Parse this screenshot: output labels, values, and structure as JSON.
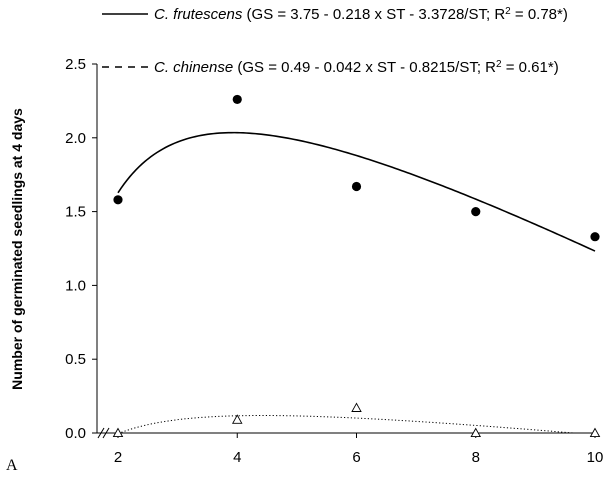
{
  "panel_label": "A",
  "chart_data": {
    "type": "scatter",
    "ylabel": "Number of germinated seedlings at 4 days",
    "xlabel": "",
    "x_ticks": [
      2,
      4,
      6,
      8,
      10
    ],
    "y_ticks": [
      "0.0",
      "0.5",
      "1.0",
      "1.5",
      "2.0",
      "2.5"
    ],
    "xlim": [
      2,
      10
    ],
    "ylim": [
      0,
      2.5
    ],
    "axis_break": true,
    "series": [
      {
        "name": "C. frutescens",
        "equation": "(GS = 3.75 - 0.218 x ST - 3.3728/ST; R",
        "r2": "2",
        "r2_value": " = 0.78*)",
        "marker": "filled-circle",
        "line": "solid",
        "x": [
          2,
          4,
          6,
          8,
          10
        ],
        "y": [
          1.58,
          2.26,
          1.67,
          1.5,
          1.33
        ],
        "fit": {
          "a": 3.75,
          "b": -0.218,
          "c": -3.3728
        }
      },
      {
        "name": "C. chinense",
        "equation": "(GS = 0.49 - 0.042 x ST - 0.8215/ST; R",
        "r2": "2",
        "r2_value": " = 0.61*)",
        "marker": "open-triangle",
        "line": "dotted",
        "x": [
          2,
          4,
          6,
          8,
          10
        ],
        "y": [
          0.0,
          0.09,
          0.17,
          0.0,
          0.0
        ],
        "fit": {
          "a": 0.49,
          "b": -0.042,
          "c": -0.8215
        }
      }
    ]
  }
}
